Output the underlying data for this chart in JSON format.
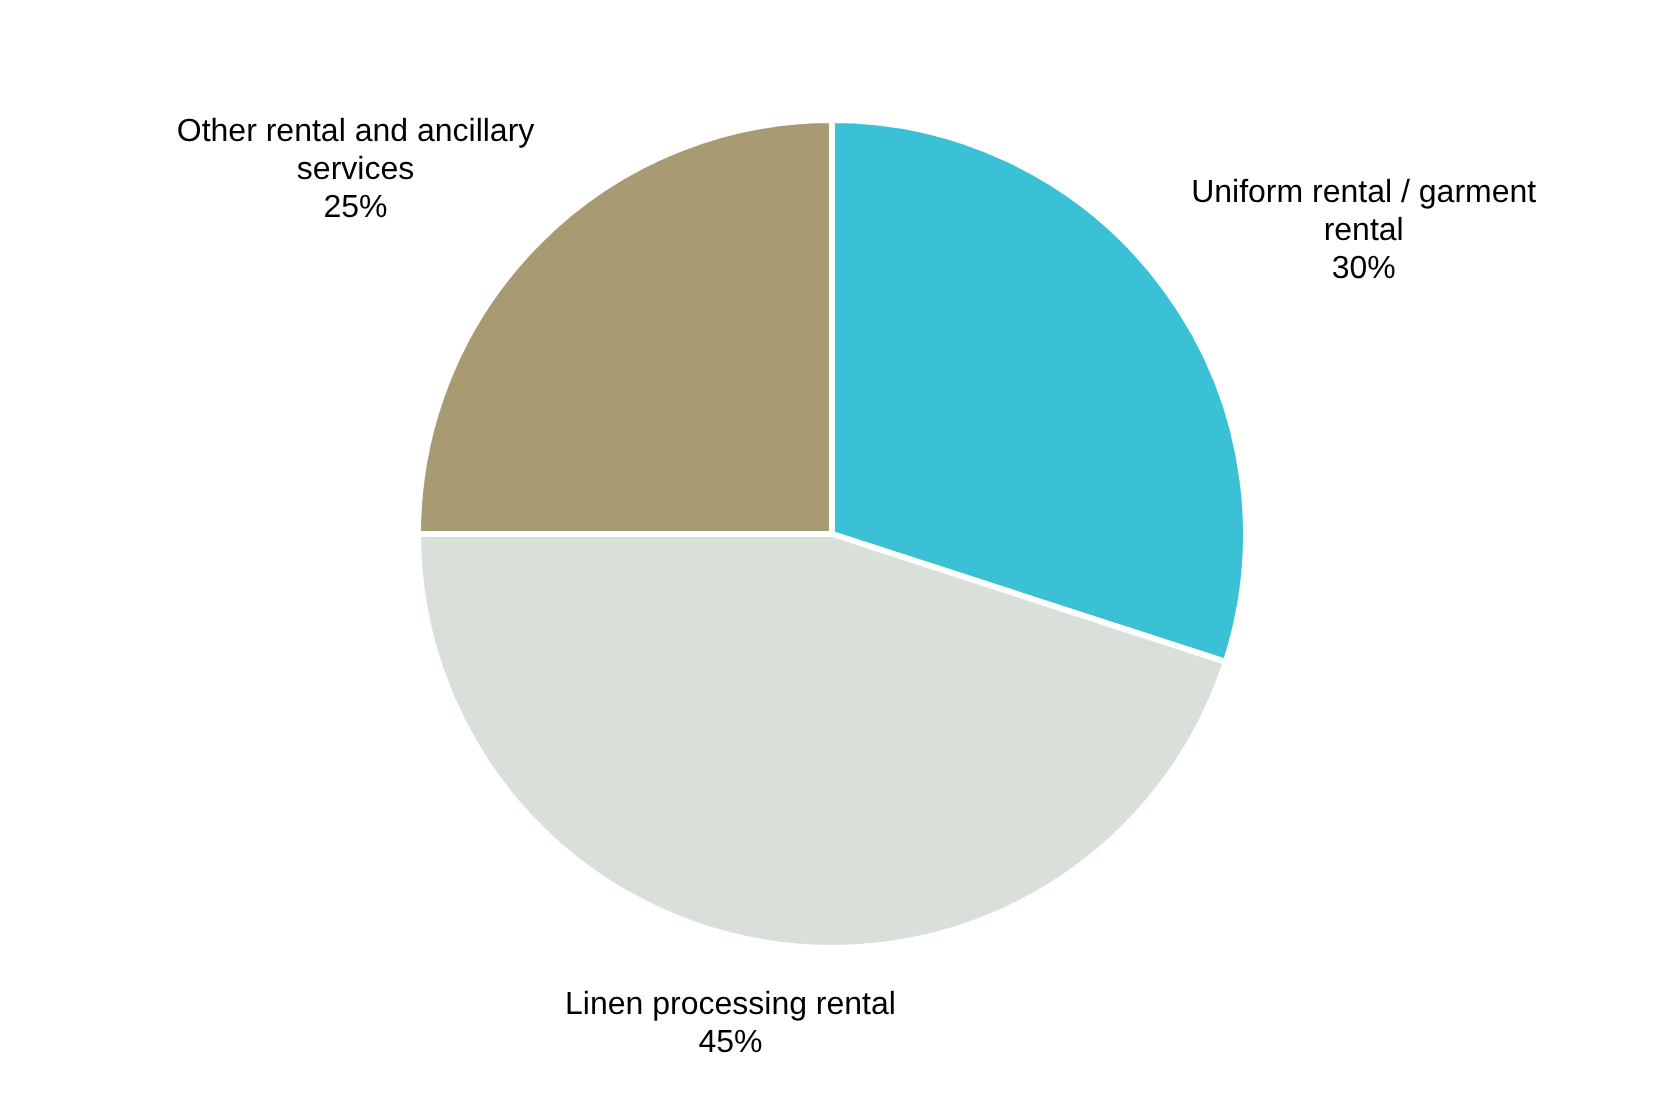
{
  "chart_data": {
    "type": "pie",
    "categories": [
      "Uniform rental / garment rental",
      "Linen processing rental",
      "Other rental and ancillary services"
    ],
    "values": [
      30,
      45,
      25
    ],
    "colors": [
      "#3bc1d6",
      "#d9e0d9",
      "#a89a72"
    ],
    "value_labels": [
      "30%",
      "45%",
      "25%"
    ],
    "legend": false
  }
}
